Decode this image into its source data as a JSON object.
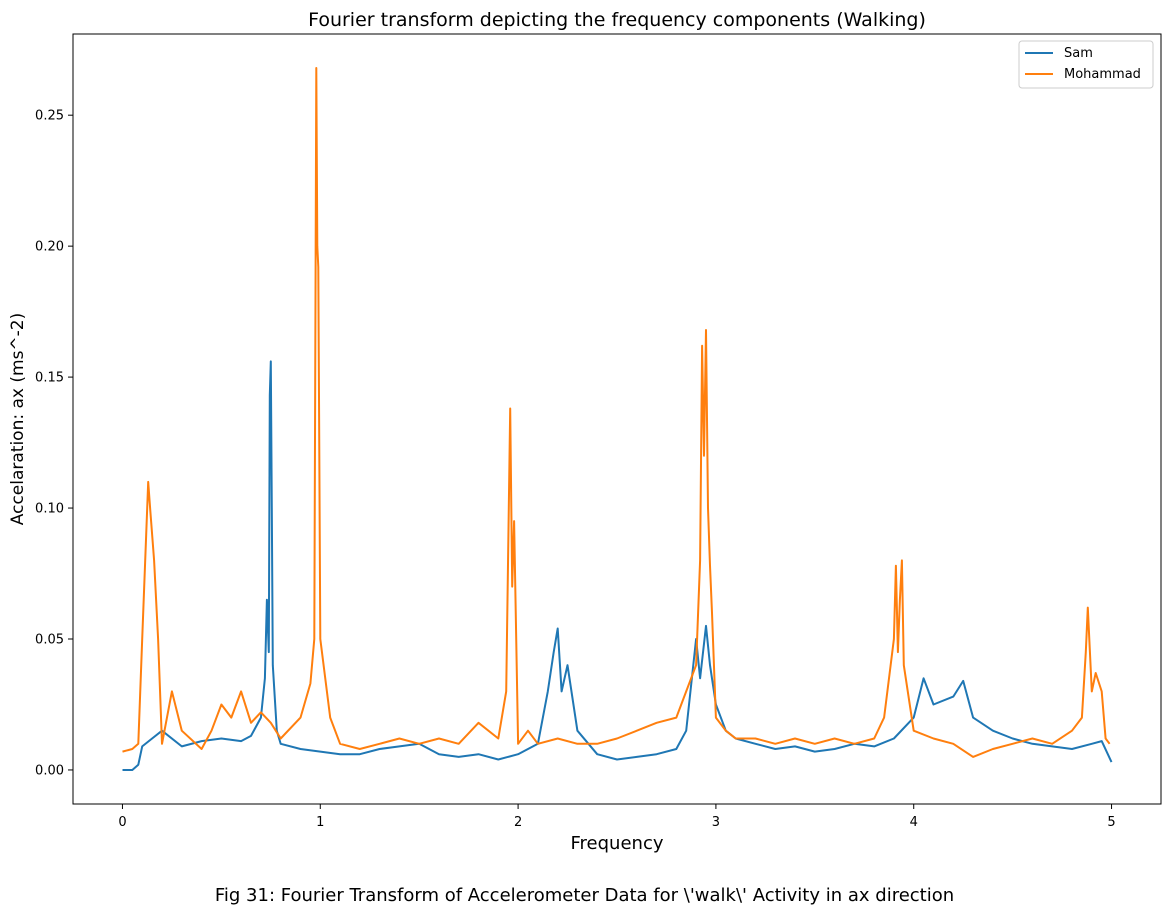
{
  "figure": {
    "caption": "Fig 31: Fourier Transform of Accelerometer Data for \\'walk\\' Activity in ax direction"
  },
  "chart_data": {
    "type": "line",
    "title": "Fourier transform depicting the frequency components (Walking)",
    "xlabel": "Frequency",
    "ylabel": "Accelaration: ax (ms^-2)",
    "xlim": [
      -0.25,
      5.25
    ],
    "ylim": [
      -0.013,
      0.281
    ],
    "xticks": [
      0,
      1,
      2,
      3,
      4,
      5
    ],
    "xtick_labels": [
      "0",
      "1",
      "2",
      "3",
      "4",
      "5"
    ],
    "yticks": [
      0.0,
      0.05,
      0.1,
      0.15,
      0.2,
      0.25
    ],
    "ytick_labels": [
      "0.00",
      "0.05",
      "0.10",
      "0.15",
      "0.20",
      "0.25"
    ],
    "grid": false,
    "legend_position": "top-right",
    "series": [
      {
        "name": "Sam",
        "color": "#1f77b4",
        "x": [
          0.0,
          0.05,
          0.08,
          0.1,
          0.15,
          0.2,
          0.3,
          0.4,
          0.5,
          0.6,
          0.65,
          0.7,
          0.72,
          0.73,
          0.74,
          0.745,
          0.75,
          0.755,
          0.76,
          0.78,
          0.8,
          0.9,
          1.0,
          1.1,
          1.2,
          1.3,
          1.4,
          1.5,
          1.6,
          1.7,
          1.8,
          1.9,
          2.0,
          2.1,
          2.15,
          2.18,
          2.2,
          2.22,
          2.25,
          2.3,
          2.4,
          2.5,
          2.6,
          2.7,
          2.8,
          2.85,
          2.9,
          2.92,
          2.95,
          2.97,
          3.0,
          3.05,
          3.1,
          3.2,
          3.3,
          3.4,
          3.5,
          3.6,
          3.7,
          3.8,
          3.9,
          4.0,
          4.05,
          4.1,
          4.2,
          4.25,
          4.3,
          4.4,
          4.5,
          4.6,
          4.7,
          4.8,
          4.9,
          4.95,
          5.0
        ],
        "y": [
          0.0,
          0.0,
          0.002,
          0.009,
          0.012,
          0.015,
          0.009,
          0.011,
          0.012,
          0.011,
          0.013,
          0.02,
          0.035,
          0.065,
          0.045,
          0.143,
          0.156,
          0.1,
          0.04,
          0.015,
          0.01,
          0.008,
          0.007,
          0.006,
          0.006,
          0.008,
          0.009,
          0.01,
          0.006,
          0.005,
          0.006,
          0.004,
          0.006,
          0.01,
          0.03,
          0.045,
          0.054,
          0.03,
          0.04,
          0.015,
          0.006,
          0.004,
          0.005,
          0.006,
          0.008,
          0.015,
          0.05,
          0.035,
          0.055,
          0.04,
          0.025,
          0.015,
          0.012,
          0.01,
          0.008,
          0.009,
          0.007,
          0.008,
          0.01,
          0.009,
          0.012,
          0.02,
          0.035,
          0.025,
          0.028,
          0.034,
          0.02,
          0.015,
          0.012,
          0.01,
          0.009,
          0.008,
          0.01,
          0.011,
          0.003
        ]
      },
      {
        "name": "Mohammad",
        "color": "#ff7f0e",
        "x": [
          0.0,
          0.05,
          0.08,
          0.1,
          0.12,
          0.13,
          0.14,
          0.16,
          0.18,
          0.2,
          0.25,
          0.3,
          0.4,
          0.45,
          0.5,
          0.55,
          0.6,
          0.65,
          0.7,
          0.75,
          0.8,
          0.9,
          0.95,
          0.97,
          0.98,
          0.985,
          0.99,
          1.0,
          1.05,
          1.1,
          1.2,
          1.3,
          1.4,
          1.5,
          1.6,
          1.7,
          1.8,
          1.9,
          1.94,
          1.96,
          1.97,
          1.98,
          2.0,
          2.05,
          2.1,
          2.2,
          2.3,
          2.4,
          2.5,
          2.6,
          2.7,
          2.8,
          2.85,
          2.9,
          2.92,
          2.93,
          2.94,
          2.95,
          2.96,
          2.97,
          2.98,
          3.0,
          3.05,
          3.1,
          3.2,
          3.3,
          3.4,
          3.5,
          3.6,
          3.7,
          3.8,
          3.85,
          3.9,
          3.91,
          3.92,
          3.93,
          3.94,
          3.95,
          4.0,
          4.1,
          4.2,
          4.3,
          4.4,
          4.5,
          4.6,
          4.7,
          4.8,
          4.85,
          4.87,
          4.88,
          4.9,
          4.92,
          4.95,
          4.97,
          4.99
        ],
        "y": [
          0.007,
          0.008,
          0.01,
          0.05,
          0.09,
          0.11,
          0.1,
          0.08,
          0.05,
          0.01,
          0.03,
          0.015,
          0.008,
          0.015,
          0.025,
          0.02,
          0.03,
          0.018,
          0.022,
          0.018,
          0.012,
          0.02,
          0.033,
          0.05,
          0.268,
          0.2,
          0.192,
          0.05,
          0.02,
          0.01,
          0.008,
          0.01,
          0.012,
          0.01,
          0.012,
          0.01,
          0.018,
          0.012,
          0.03,
          0.138,
          0.07,
          0.095,
          0.01,
          0.015,
          0.01,
          0.012,
          0.01,
          0.01,
          0.012,
          0.015,
          0.018,
          0.02,
          0.03,
          0.04,
          0.08,
          0.162,
          0.12,
          0.168,
          0.1,
          0.078,
          0.06,
          0.02,
          0.015,
          0.012,
          0.012,
          0.01,
          0.012,
          0.01,
          0.012,
          0.01,
          0.012,
          0.02,
          0.05,
          0.078,
          0.045,
          0.065,
          0.08,
          0.04,
          0.015,
          0.012,
          0.01,
          0.005,
          0.008,
          0.01,
          0.012,
          0.01,
          0.015,
          0.02,
          0.045,
          0.062,
          0.03,
          0.037,
          0.03,
          0.012,
          0.01
        ]
      }
    ]
  }
}
